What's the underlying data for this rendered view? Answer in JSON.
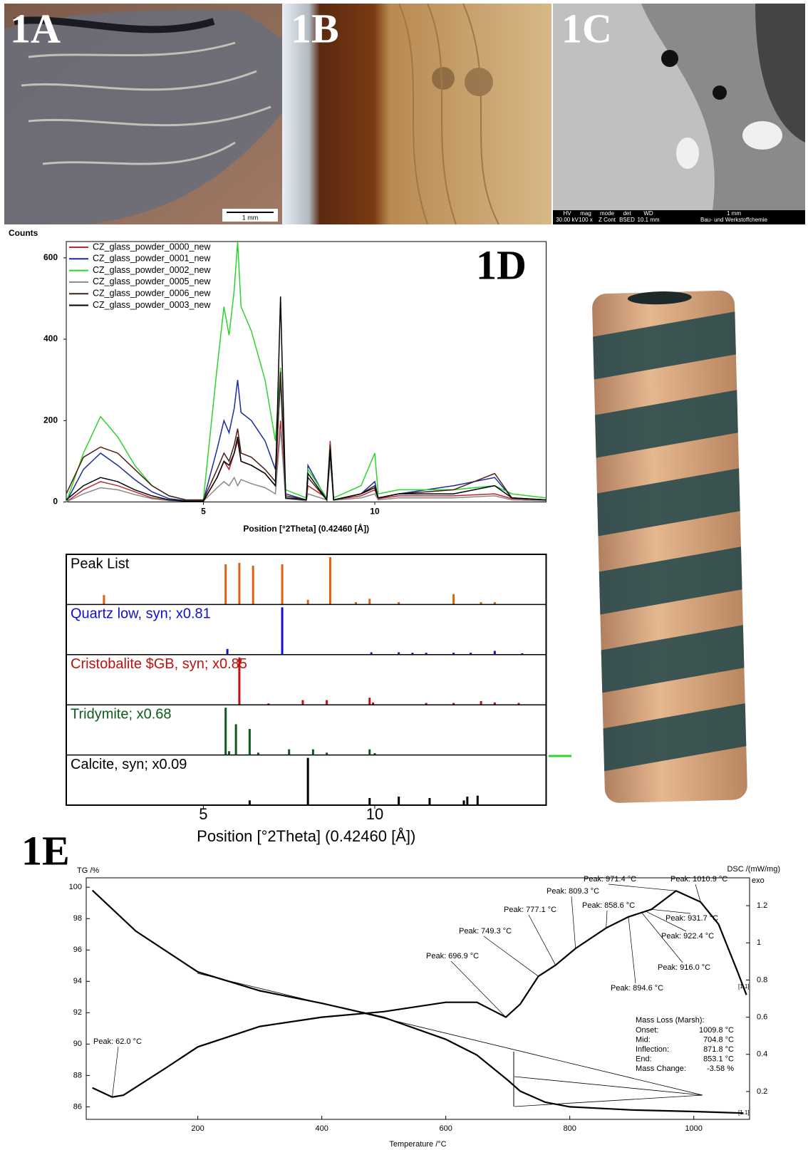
{
  "panels": {
    "a": {
      "label": "1A",
      "scale": "1 mm"
    },
    "b": {
      "label": "1B"
    },
    "c": {
      "label": "1C",
      "info_bar": [
        "HV",
        "mag",
        "mode",
        "det",
        "WD",
        "1 mm",
        "30.00 kV",
        "100 x",
        "Z Cont",
        "BSED",
        "10.1 mm",
        "Bau- und Werkstoffchemie"
      ]
    }
  },
  "chart_data": [
    {
      "type": "line",
      "panel_label": "1D",
      "y_label": "Counts",
      "x_label": "Position [°2Theta] (0.42460 [Å])",
      "x": [
        1,
        1.5,
        2,
        2.5,
        3,
        3.5,
        4,
        4.5,
        5,
        5.4,
        5.6,
        5.75,
        5.9,
        6,
        6.1,
        6.4,
        6.8,
        7.1,
        7.25,
        7.4,
        8,
        8.05,
        8.6,
        8.7,
        8.8,
        9.6,
        10,
        10.1,
        10.7,
        12.3,
        13.5,
        14,
        15
      ],
      "xlim": [
        1,
        15
      ],
      "xticks": [
        5,
        10
      ],
      "ylim": [
        0,
        640
      ],
      "yticks": [
        0,
        200,
        400,
        600
      ],
      "series": [
        {
          "name": "CZ_glass_powder_0000_new",
          "color": "#c0282d",
          "values": [
            0,
            30,
            50,
            40,
            25,
            10,
            4,
            2,
            2,
            60,
            100,
            80,
            120,
            150,
            100,
            90,
            70,
            40,
            200,
            10,
            4,
            40,
            10,
            150,
            5,
            15,
            30,
            8,
            15,
            15,
            20,
            8,
            4
          ]
        },
        {
          "name": "CZ_glass_powder_0001_new",
          "color": "#1c2c9c",
          "values": [
            0,
            80,
            120,
            90,
            55,
            25,
            8,
            3,
            3,
            130,
            200,
            170,
            230,
            300,
            220,
            200,
            150,
            80,
            300,
            20,
            5,
            90,
            5,
            120,
            5,
            20,
            50,
            10,
            20,
            40,
            60,
            10,
            5
          ]
        },
        {
          "name": "CZ_glass_powder_0002_new",
          "color": "#2ed42e",
          "values": [
            0,
            120,
            210,
            160,
            90,
            40,
            15,
            5,
            5,
            330,
            480,
            410,
            520,
            640,
            480,
            420,
            300,
            150,
            330,
            30,
            10,
            80,
            10,
            140,
            10,
            40,
            120,
            20,
            30,
            30,
            40,
            20,
            10
          ]
        },
        {
          "name": "CZ_glass_powder_0005_new",
          "color": "#8a8a8a",
          "values": [
            0,
            20,
            35,
            30,
            18,
            8,
            3,
            2,
            2,
            35,
            50,
            40,
            60,
            40,
            55,
            45,
            35,
            20,
            180,
            8,
            3,
            20,
            5,
            100,
            4,
            10,
            20,
            5,
            10,
            10,
            15,
            5,
            3
          ]
        },
        {
          "name": "CZ_glass_powder_0006_new",
          "color": "#4a1f1a",
          "values": [
            20,
            110,
            135,
            120,
            80,
            40,
            15,
            5,
            5,
            80,
            120,
            100,
            140,
            180,
            120,
            110,
            80,
            50,
            320,
            15,
            5,
            60,
            5,
            140,
            5,
            20,
            40,
            10,
            20,
            30,
            70,
            10,
            5
          ]
        },
        {
          "name": "CZ_glass_powder_0003_new",
          "color": "#000000",
          "values": [
            5,
            40,
            60,
            50,
            30,
            15,
            5,
            2,
            2,
            60,
            100,
            90,
            120,
            160,
            100,
            90,
            70,
            40,
            505,
            10,
            5,
            70,
            5,
            130,
            5,
            20,
            35,
            10,
            20,
            20,
            40,
            10,
            5
          ]
        }
      ]
    },
    {
      "type": "stick",
      "x_label": "Position [°2Theta] (0.42460 [Å])",
      "xlim": [
        1,
        15
      ],
      "xticks": [
        5,
        10
      ],
      "ylim": [
        0,
        100
      ],
      "series": [
        {
          "name": "Peak List",
          "color": "#e0600f",
          "label_color": "#000000",
          "x": [
            2.1,
            5.65,
            6.05,
            6.45,
            7.3,
            8.05,
            8.7,
            9.45,
            9.85,
            10.7,
            12.3,
            13.1,
            13.5
          ],
          "values": [
            20,
            85,
            88,
            82,
            85,
            10,
            100,
            5,
            12,
            5,
            22,
            5,
            5
          ]
        },
        {
          "name": "Quartz low, syn; x0.81",
          "color": "#1010d0",
          "label_color": "#1010d0",
          "x": [
            5.7,
            7.3,
            9.9,
            10.7,
            11.1,
            11.5,
            12.3,
            12.8,
            13.5,
            14.3
          ],
          "values": [
            12,
            100,
            5,
            5,
            4,
            4,
            4,
            4,
            8,
            3
          ]
        },
        {
          "name": "Cristobalite $GB, syn; x0.85",
          "color": "#c01010",
          "label_color": "#c01010",
          "x": [
            6.05,
            6.9,
            7.9,
            8.6,
            9.85,
            9.95,
            11.5,
            12.3,
            13.1,
            13.5,
            14.2
          ],
          "values": [
            100,
            3,
            10,
            10,
            15,
            5,
            4,
            4,
            8,
            5,
            4
          ]
        },
        {
          "name": "Tridymite; x0.68",
          "color": "#0d5a1c",
          "label_color": "#0d5a1c",
          "x": [
            5.65,
            5.75,
            5.95,
            6.35,
            6.6,
            7.5,
            8.2,
            8.6,
            9.85,
            10
          ],
          "values": [
            100,
            8,
            65,
            55,
            5,
            12,
            12,
            5,
            12,
            4
          ]
        },
        {
          "name": "Calcite, syn; x0.09",
          "color": "#000000",
          "label_color": "#000000",
          "x": [
            6.35,
            8.05,
            9.85,
            10.7,
            11.6,
            12.6,
            12.7,
            13
          ],
          "values": [
            10,
            100,
            15,
            18,
            15,
            10,
            18,
            20
          ]
        }
      ]
    },
    {
      "type": "tg-dsc",
      "panel_label": "1E",
      "y_label": "TG /%",
      "y2_label": "DSC /(mW/mg)",
      "y2_note": "exo",
      "x_label": "Temperature /°C",
      "xlim": [
        20,
        1090
      ],
      "xticks": [
        200,
        400,
        600,
        800,
        1000
      ],
      "ylim": [
        85.2,
        100.6
      ],
      "yticks": [
        86,
        88,
        90,
        92,
        94,
        96,
        98,
        100
      ],
      "y2lim": [
        0.05,
        1.35
      ],
      "y2ticks": [
        0.2,
        0.4,
        0.6,
        0.8,
        1.0,
        1.2
      ],
      "series": [
        {
          "name": "TG",
          "color": "#000000",
          "x": [
            30,
            100,
            200,
            300,
            400,
            500,
            600,
            650,
            700,
            720,
            760,
            800,
            900,
            1000,
            1080
          ],
          "values": [
            99.8,
            97.2,
            94.6,
            93.4,
            92.6,
            91.7,
            90.3,
            89.3,
            87.7,
            87.0,
            86.3,
            86.0,
            85.8,
            85.7,
            85.6
          ]
        },
        {
          "name": "DSC",
          "axis": "y2",
          "color": "#000000",
          "x": [
            30,
            62,
            80,
            150,
            200,
            300,
            400,
            500,
            600,
            650,
            696.9,
            720,
            749.3,
            777.1,
            809.3,
            858.6,
            894.6,
            931.7,
            971.4,
            1010.9,
            1040,
            1070,
            1085
          ],
          "values": [
            0.22,
            0.17,
            0.18,
            0.33,
            0.44,
            0.55,
            0.6,
            0.63,
            0.68,
            0.68,
            0.6,
            0.67,
            0.82,
            0.88,
            0.97,
            1.08,
            1.14,
            1.18,
            1.28,
            1.22,
            1.1,
            0.85,
            0.72
          ]
        }
      ],
      "peaks": [
        {
          "label": "Peak: 62.0 °C",
          "value": 62.0
        },
        {
          "label": "Peak: 696.9 °C",
          "value": 696.9
        },
        {
          "label": "Peak: 749.3 °C",
          "value": 749.3
        },
        {
          "label": "Peak: 777.1 °C",
          "value": 777.1
        },
        {
          "label": "Peak: 809.3 °C",
          "value": 809.3
        },
        {
          "label": "Peak: 858.6 °C",
          "value": 858.6
        },
        {
          "label": "Peak: 894.6 °C",
          "value": 894.6
        },
        {
          "label": "Peak: 916.0 °C",
          "value": 916.0
        },
        {
          "label": "Peak: 922.4 °C",
          "value": 922.4
        },
        {
          "label": "Peak: 931.7 °C",
          "value": 931.7
        },
        {
          "label": "Peak: 971.4 °C",
          "value": 971.4
        },
        {
          "label": "Peak: 1010.9 °C",
          "value": 1010.9
        }
      ],
      "markers": [
        "[1.1]",
        "[1.1]"
      ],
      "mass_loss": {
        "title": "Mass Loss (Marsh):",
        "rows": [
          [
            "Onset:",
            "1009.8 °C"
          ],
          [
            "Mid:",
            "704.8 °C"
          ],
          [
            "Inflection:",
            "871.8 °C"
          ],
          [
            "End:",
            "853.1 °C"
          ],
          [
            "Mass Change:",
            "-3.58 %"
          ]
        ]
      }
    }
  ]
}
